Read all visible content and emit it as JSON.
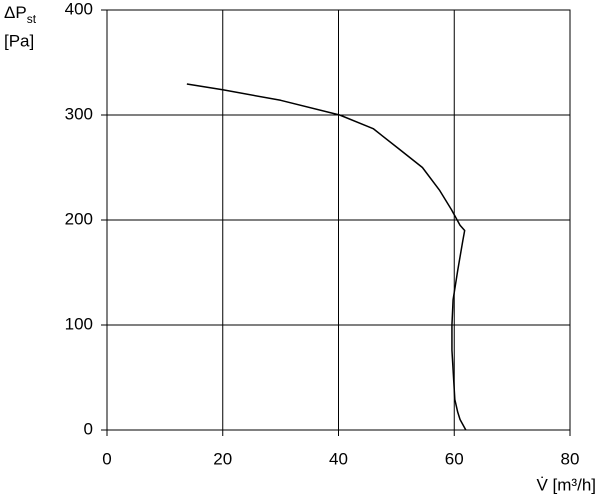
{
  "chart_data": {
    "type": "line",
    "y_label": "ΔP",
    "y_label_sub": "st",
    "y_label_unit": "[Pa]",
    "x_label": "V̇ [m³/h]",
    "x": [
      13.8,
      20,
      30,
      40.2,
      46,
      50.6,
      54.5,
      57.5,
      59.5,
      61,
      61.8,
      61.5,
      60.6,
      59.8,
      59.6,
      59.6,
      60.1,
      60.6,
      61,
      62
    ],
    "values": [
      329.5,
      324,
      314,
      300,
      287,
      267,
      250,
      228,
      210,
      195,
      190,
      181,
      152,
      124,
      100,
      76,
      29,
      17,
      10,
      0
    ],
    "color": "#000000",
    "xlim": [
      0,
      80
    ],
    "ylim": [
      0,
      400
    ],
    "xticks": [
      0,
      20,
      40,
      60,
      80
    ],
    "yticks": [
      0,
      100,
      200,
      300,
      400
    ],
    "grid": true
  }
}
